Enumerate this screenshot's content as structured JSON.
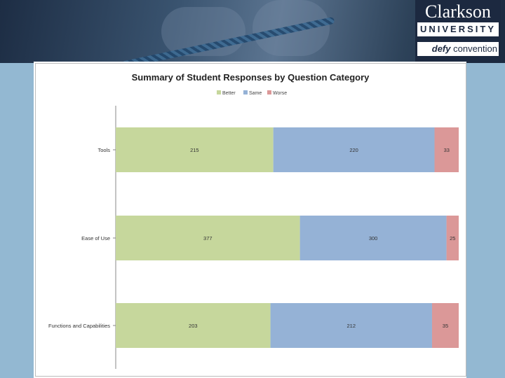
{
  "branding": {
    "name": "Clarkson",
    "university": "UNIVERSITY",
    "tagline_em": "defy",
    "tagline_rest": " convention"
  },
  "colors": {
    "background": "#93b8d2",
    "better": "#c6d79c",
    "same": "#95b2d6",
    "worse": "#db9898"
  },
  "chart_data": {
    "type": "bar",
    "orientation": "horizontal",
    "stacked": true,
    "title": "Summary of Student Responses by Question Category",
    "categories": [
      "Tools",
      "Ease of Use",
      "Functions and Capabilities"
    ],
    "series": [
      {
        "name": "Better",
        "values": [
          215,
          377,
          203
        ],
        "color": "#c6d79c"
      },
      {
        "name": "Same",
        "values": [
          220,
          300,
          212
        ],
        "color": "#95b2d6"
      },
      {
        "name": "Worse",
        "values": [
          33,
          25,
          35
        ],
        "color": "#db9898"
      }
    ],
    "normalized": true,
    "grid": false,
    "legend_position": "top"
  }
}
